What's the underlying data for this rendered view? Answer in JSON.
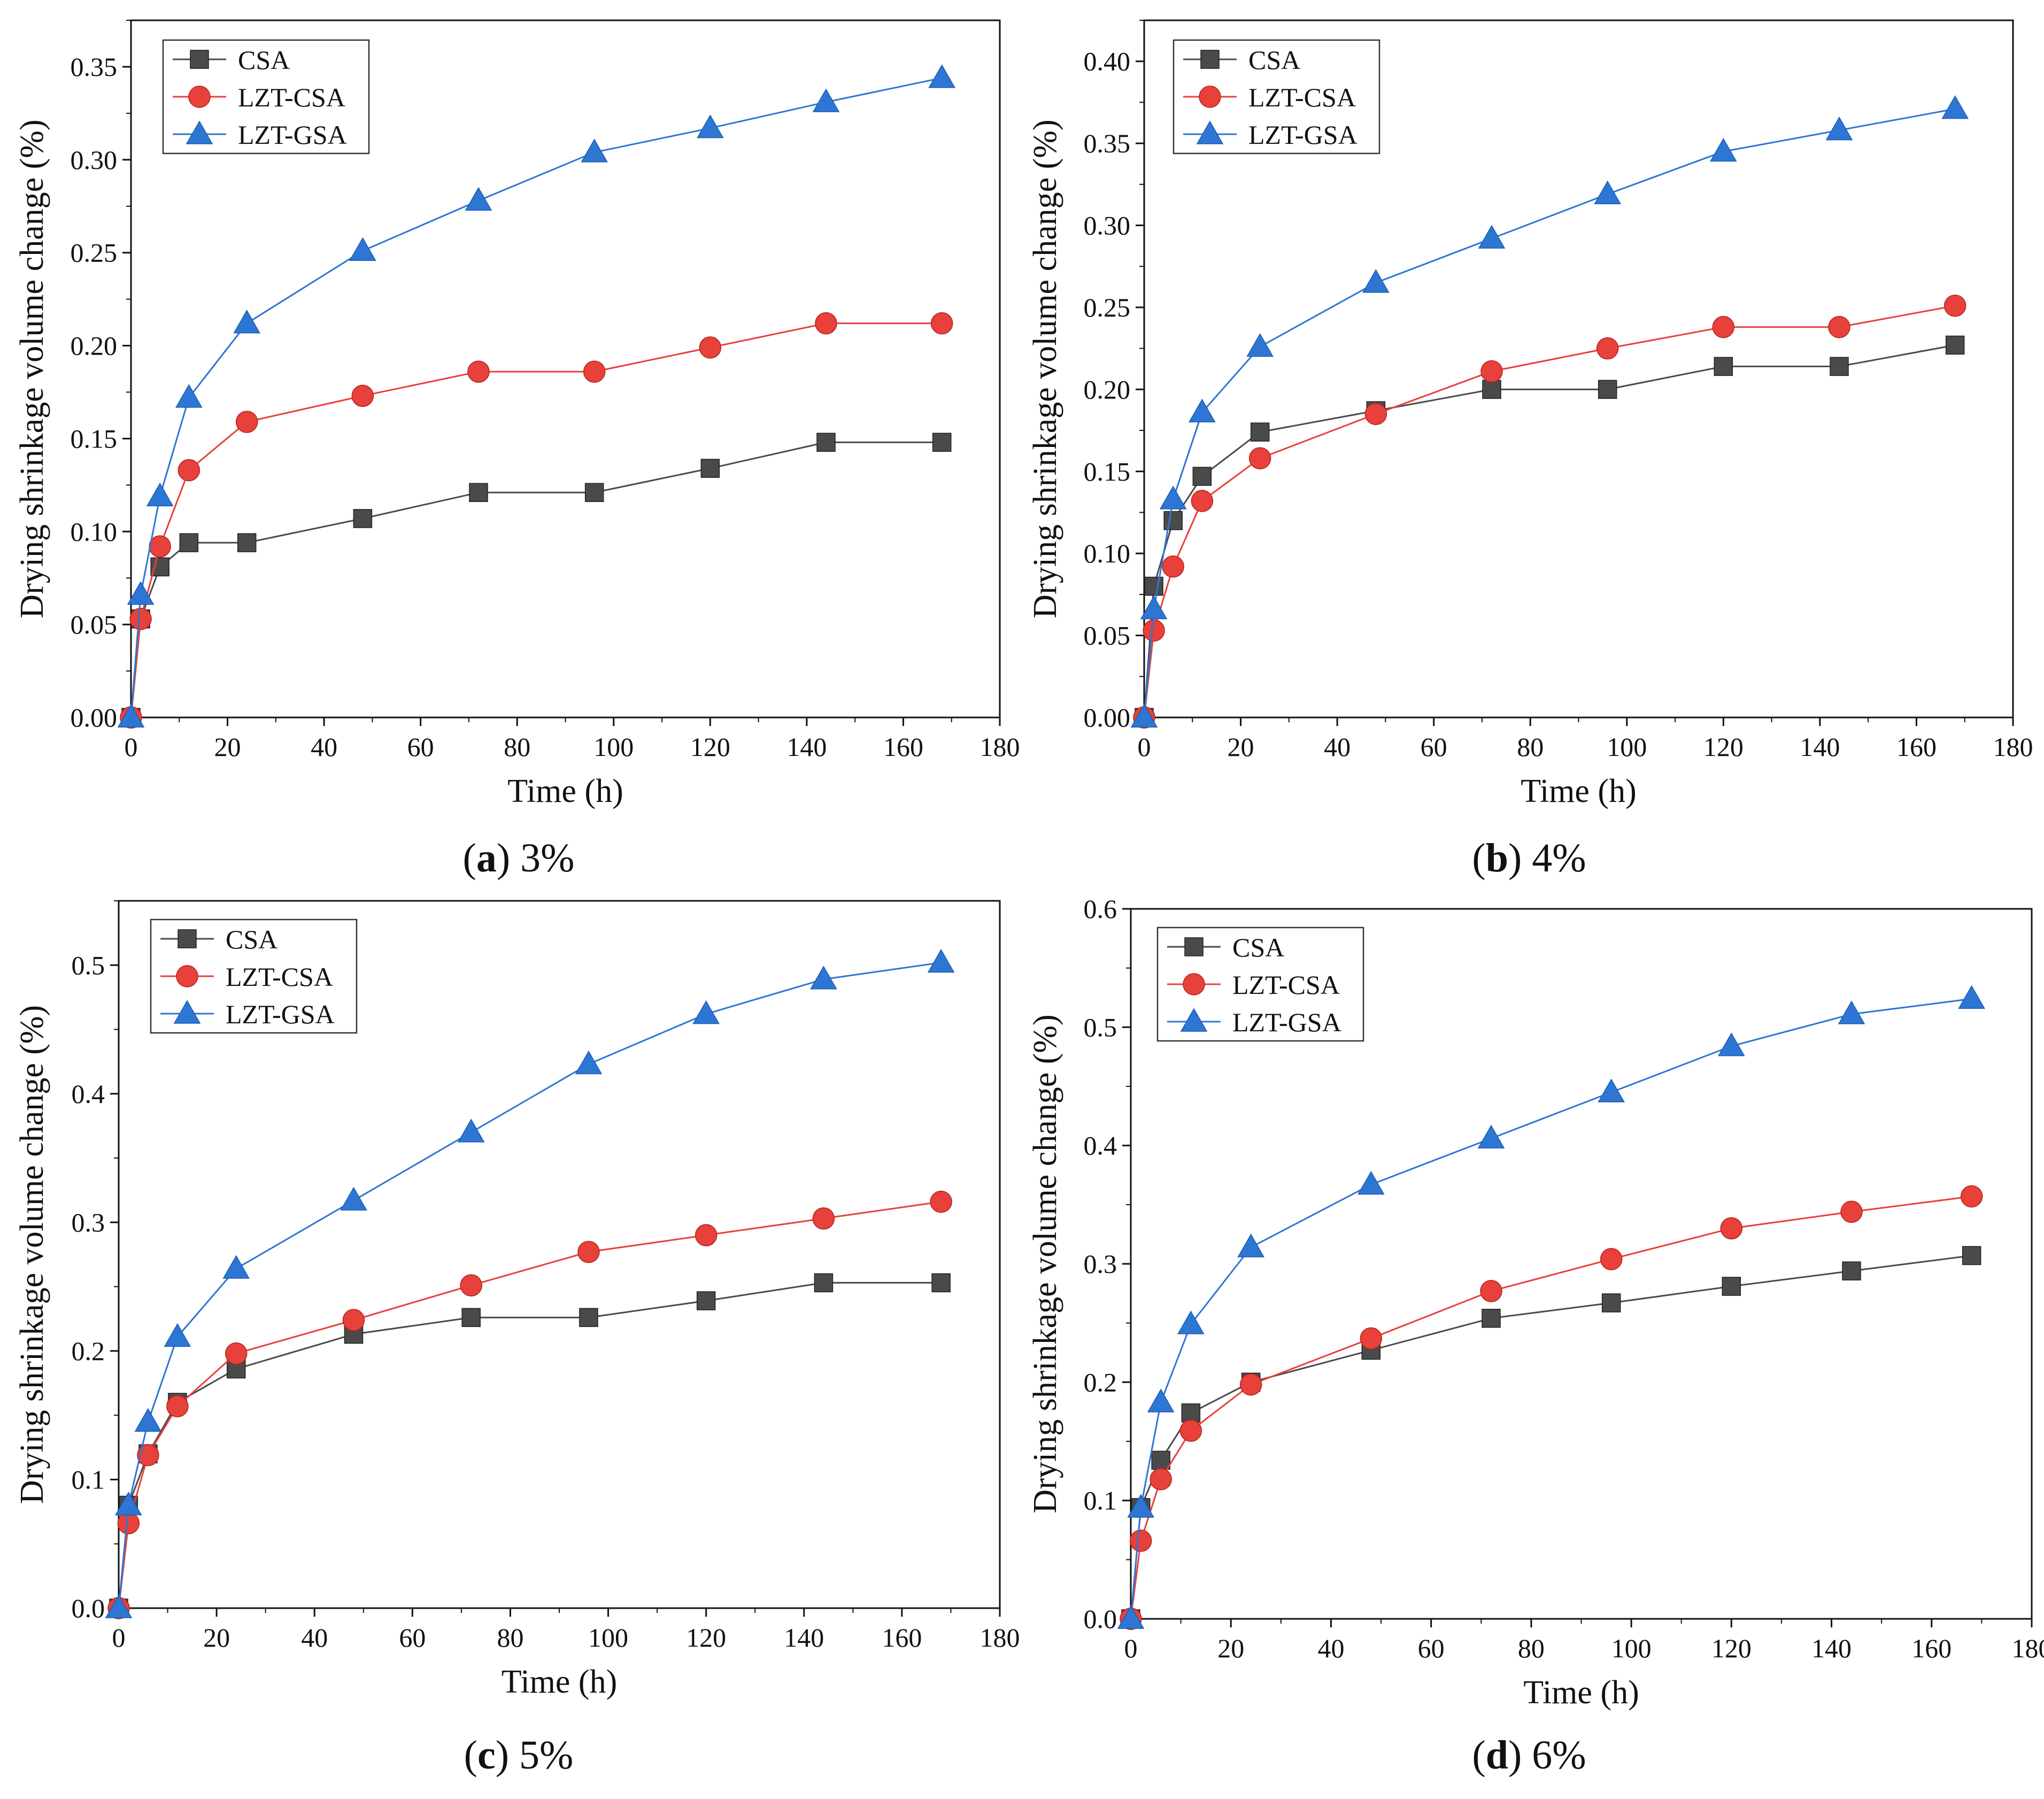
{
  "colors": {
    "CSA": "#4a4a4a",
    "LZT-CSA": "#e8403a",
    "LZT-GSA": "#2e76d4",
    "axis": "#111111"
  },
  "chart_data": [
    {
      "panel_letter": "a",
      "panel_value": "3%",
      "type": "line",
      "xlabel": "Time (h)",
      "ylabel": "Drying shrinkage volume change (%)",
      "xlim": [
        0,
        180
      ],
      "ylim": [
        0,
        0.375
      ],
      "x_ticks": [
        "0",
        "20",
        "40",
        "60",
        "80",
        "100",
        "120",
        "140",
        "160",
        "180"
      ],
      "y_ticks": [
        "0.00",
        "0.05",
        "0.10",
        "0.15",
        "0.20",
        "0.25",
        "0.30",
        "0.35"
      ],
      "grid": false,
      "legend": "top-left",
      "x": [
        0,
        2,
        6,
        12,
        24,
        48,
        72,
        96,
        120,
        144,
        168
      ],
      "series": [
        {
          "name": "CSA",
          "marker": "square",
          "values": [
            0,
            0.053,
            0.081,
            0.094,
            0.094,
            0.107,
            0.121,
            0.121,
            0.134,
            0.148,
            0.148
          ]
        },
        {
          "name": "LZT-CSA",
          "marker": "circle",
          "values": [
            0,
            0.053,
            0.092,
            0.133,
            0.159,
            0.173,
            0.186,
            0.186,
            0.199,
            0.212,
            0.212
          ]
        },
        {
          "name": "LZT-GSA",
          "marker": "triangle",
          "values": [
            0,
            0.066,
            0.119,
            0.172,
            0.212,
            0.251,
            0.278,
            0.304,
            0.317,
            0.331,
            0.344
          ]
        }
      ]
    },
    {
      "panel_letter": "b",
      "panel_value": "4%",
      "type": "line",
      "xlabel": "Time (h)",
      "ylabel": "Drying shrinkage volume change (%)",
      "xlim": [
        0,
        180
      ],
      "ylim": [
        0,
        0.425
      ],
      "x_ticks": [
        "0",
        "20",
        "40",
        "60",
        "80",
        "100",
        "120",
        "140",
        "160",
        "180"
      ],
      "y_ticks": [
        "0.00",
        "0.05",
        "0.10",
        "0.15",
        "0.20",
        "0.25",
        "0.30",
        "0.35",
        "0.40"
      ],
      "grid": false,
      "legend": "top-left",
      "x": [
        0,
        2,
        6,
        12,
        24,
        48,
        72,
        96,
        120,
        144,
        168
      ],
      "series": [
        {
          "name": "CSA",
          "marker": "square",
          "values": [
            0,
            0.08,
            0.12,
            0.147,
            0.174,
            0.187,
            0.2,
            0.2,
            0.214,
            0.214,
            0.227
          ]
        },
        {
          "name": "LZT-CSA",
          "marker": "circle",
          "values": [
            0,
            0.053,
            0.092,
            0.132,
            0.158,
            0.185,
            0.211,
            0.225,
            0.238,
            0.238,
            0.251
          ]
        },
        {
          "name": "LZT-GSA",
          "marker": "triangle",
          "values": [
            0,
            0.066,
            0.133,
            0.186,
            0.226,
            0.265,
            0.292,
            0.319,
            0.345,
            0.358,
            0.371
          ]
        }
      ]
    },
    {
      "panel_letter": "c",
      "panel_value": "5%",
      "type": "line",
      "xlabel": "Time (h)",
      "ylabel": "Drying shrinkage volume change (%)",
      "xlim": [
        0,
        180
      ],
      "ylim": [
        0,
        0.55
      ],
      "x_ticks": [
        "0",
        "20",
        "40",
        "60",
        "80",
        "100",
        "120",
        "140",
        "160",
        "180"
      ],
      "y_ticks": [
        "0.0",
        "0.1",
        "0.2",
        "0.3",
        "0.4",
        "0.5"
      ],
      "grid": false,
      "legend": "top-left",
      "x": [
        0,
        2,
        6,
        12,
        24,
        48,
        72,
        96,
        120,
        144,
        168
      ],
      "series": [
        {
          "name": "CSA",
          "marker": "square",
          "values": [
            0,
            0.08,
            0.12,
            0.16,
            0.186,
            0.213,
            0.226,
            0.226,
            0.239,
            0.253,
            0.253
          ]
        },
        {
          "name": "LZT-CSA",
          "marker": "circle",
          "values": [
            0,
            0.066,
            0.119,
            0.157,
            0.198,
            0.224,
            0.251,
            0.277,
            0.29,
            0.303,
            0.316
          ]
        },
        {
          "name": "LZT-GSA",
          "marker": "triangle",
          "values": [
            0,
            0.08,
            0.145,
            0.211,
            0.264,
            0.317,
            0.37,
            0.423,
            0.462,
            0.489,
            0.502
          ]
        }
      ]
    },
    {
      "panel_letter": "d",
      "panel_value": "6%",
      "type": "line",
      "xlabel": "Time (h)",
      "ylabel": "Drying shrinkage volume change (%)",
      "xlim": [
        0,
        180
      ],
      "ylim": [
        0,
        0.6
      ],
      "x_ticks": [
        "0",
        "20",
        "40",
        "60",
        "80",
        "100",
        "120",
        "140",
        "160",
        "180"
      ],
      "y_ticks": [
        "0.0",
        "0.1",
        "0.2",
        "0.3",
        "0.4",
        "0.5",
        "0.6"
      ],
      "grid": false,
      "legend": "top-left",
      "x": [
        0,
        2,
        6,
        12,
        24,
        48,
        72,
        96,
        120,
        144,
        168
      ],
      "series": [
        {
          "name": "CSA",
          "marker": "square",
          "values": [
            0,
            0.094,
            0.134,
            0.174,
            0.2,
            0.227,
            0.254,
            0.267,
            0.281,
            0.294,
            0.307
          ]
        },
        {
          "name": "LZT-CSA",
          "marker": "circle",
          "values": [
            0,
            0.066,
            0.118,
            0.159,
            0.198,
            0.237,
            0.277,
            0.304,
            0.33,
            0.344,
            0.357
          ]
        },
        {
          "name": "LZT-GSA",
          "marker": "triangle",
          "values": [
            0,
            0.094,
            0.183,
            0.249,
            0.314,
            0.367,
            0.406,
            0.445,
            0.484,
            0.511,
            0.524
          ]
        }
      ]
    }
  ]
}
